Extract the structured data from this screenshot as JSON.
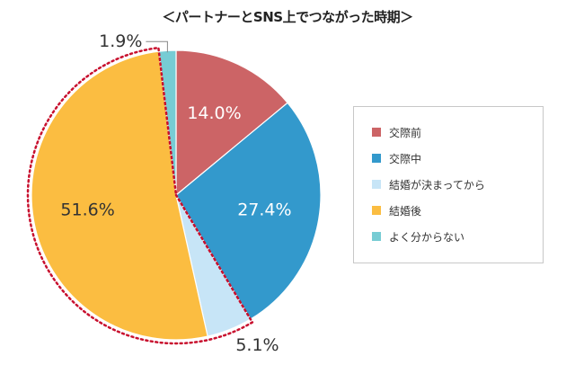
{
  "chart_data": {
    "type": "pie",
    "title": "＜パートナーとSNS上でつながった時期＞",
    "categories": [
      "交際前",
      "交際中",
      "結婚が決まってから",
      "結婚後",
      "よく分からない"
    ],
    "values": [
      14.0,
      27.4,
      5.1,
      51.6,
      1.9
    ],
    "value_labels": [
      "14.0%",
      "27.4%",
      "5.1%",
      "51.6%",
      "1.9%"
    ],
    "colors": [
      "#cc6466",
      "#3399cc",
      "#c7e5f7",
      "#fbbd41",
      "#77ccd4"
    ],
    "start_angle_deg": 0,
    "direction": "clockwise",
    "highlight": {
      "slices": [
        2,
        3
      ],
      "style": "dotted-outline",
      "color": "#c8102e"
    },
    "legend": {
      "position": "right",
      "boxed": true
    }
  }
}
